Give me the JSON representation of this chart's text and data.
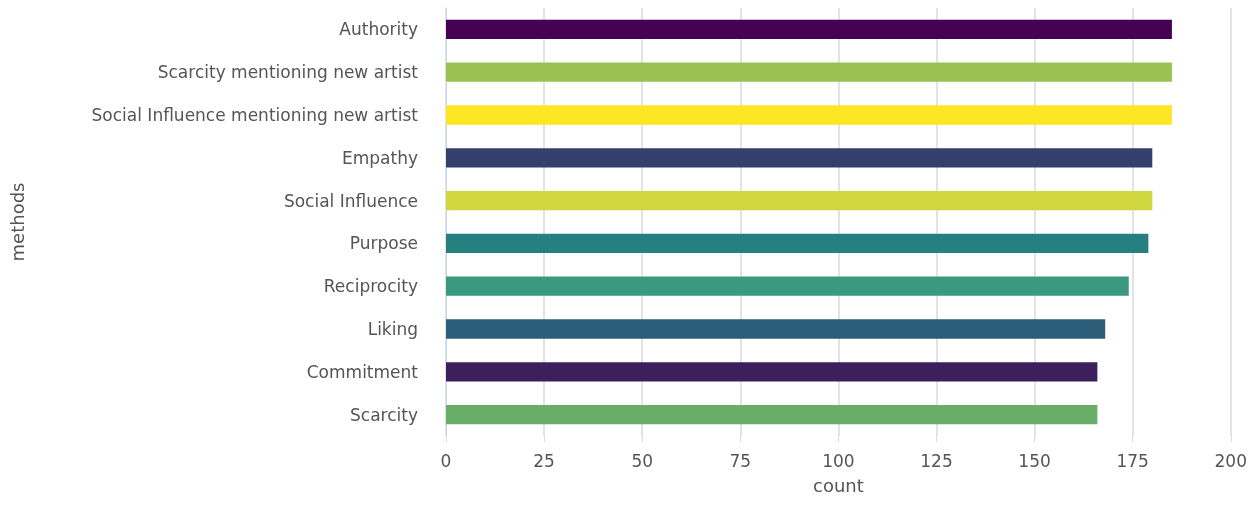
{
  "chart_data": {
    "type": "bar",
    "orientation": "horizontal",
    "xlabel": "count",
    "ylabel": "methods",
    "categories": [
      "Authority",
      "Scarcity mentioning new artist",
      "Social Influence mentioning new artist",
      "Empathy",
      "Social Influence",
      "Purpose",
      "Reciprocity",
      "Liking",
      "Commitment",
      "Scarcity"
    ],
    "values": [
      185,
      185,
      185,
      180,
      180,
      179,
      174,
      168,
      166,
      166
    ],
    "colors": [
      "#440154",
      "#9bc153",
      "#fde725",
      "#343f6b",
      "#cfd63f",
      "#25807f",
      "#3a9a7f",
      "#2c5e79",
      "#3d1f5c",
      "#68ad68"
    ],
    "xlim": [
      0,
      200
    ],
    "xticks": [
      0,
      25,
      50,
      75,
      100,
      125,
      150,
      175,
      200
    ],
    "grid": "x"
  }
}
